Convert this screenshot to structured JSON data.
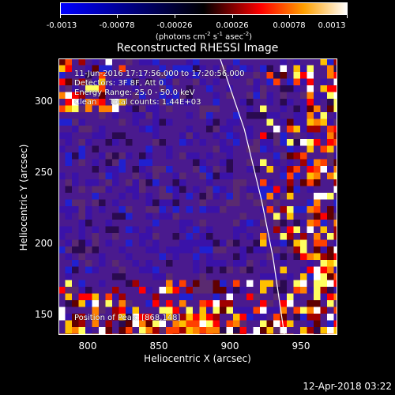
{
  "colorbar": {
    "tick_labels": [
      "-0.0013",
      "-0.00078",
      "-0.00026",
      "0.00026",
      "0.00078",
      "0.0013"
    ],
    "units": {
      "pre": "(photons cm",
      "e1": "-2",
      "mid1": " s",
      "e2": "-1",
      "mid2": " asec",
      "e3": "-2",
      "post": ")"
    },
    "range": [
      -0.0013,
      0.0013
    ],
    "colors": [
      "#0000ff",
      "#000000",
      "#ff0000",
      "#ffa000",
      "#ffffff"
    ]
  },
  "chart_data": {
    "type": "heatmap",
    "title": "Reconstructed RHESSI Image",
    "xlabel": "Heliocentric X (arcsec)",
    "ylabel": "Heliocentric Y (arcsec)",
    "xlim": [
      780,
      975
    ],
    "ylim": [
      135,
      330
    ],
    "x_ticks": [
      "800",
      "850",
      "900",
      "950"
    ],
    "y_ticks": [
      "150",
      "200",
      "250",
      "300"
    ],
    "annotations": [
      "11-Jun-2016 17:17:56.000 to 17:20:56.000",
      "Detectors: 3F 8F, Att 0",
      "Energy Range: 25.0 - 50.0 keV",
      "Clean     Total counts: 1.44E+03"
    ],
    "peak_label": "Position of Peak: [868,148]",
    "limb_curve": [
      [
        893,
        330
      ],
      [
        910,
        280
      ],
      [
        922,
        230
      ],
      [
        930,
        190
      ],
      [
        938,
        135
      ]
    ]
  },
  "footer": {
    "timestamp": "12-Apr-2018 03:22"
  }
}
